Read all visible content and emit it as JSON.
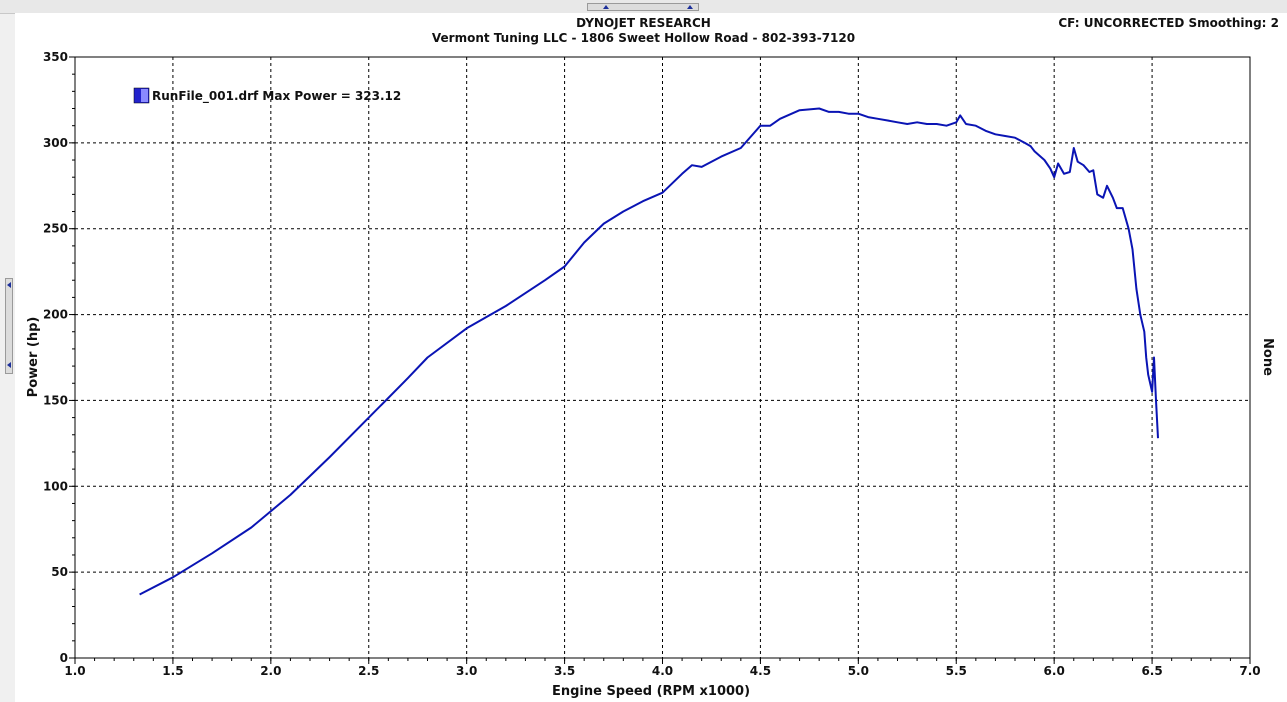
{
  "header": {
    "title": "DYNOJET RESEARCH",
    "subtitle": "Vermont Tuning LLC - 1806 Sweet Hollow Road - 802-393-7120",
    "correction": "CF: UNCORRECTED  Smoothing: 2"
  },
  "chart_data": {
    "type": "line",
    "xlabel": "Engine Speed (RPM x1000)",
    "ylabel": "Power (hp)",
    "y2label": "None",
    "xlim": [
      1.0,
      7.0
    ],
    "ylim": [
      0,
      350
    ],
    "x_ticks": [
      "1.0",
      "1.5",
      "2.0",
      "2.5",
      "3.0",
      "3.5",
      "4.0",
      "4.5",
      "5.0",
      "5.5",
      "6.0",
      "6.5",
      "7.0"
    ],
    "y_ticks": [
      "0",
      "50",
      "100",
      "150",
      "200",
      "250",
      "300",
      "350"
    ],
    "grid": true,
    "legend": {
      "position": "top-left",
      "entries": [
        {
          "label": "RunFile_001.drf Max Power = 323.12",
          "color": "#2222cc"
        }
      ]
    },
    "series": [
      {
        "name": "RunFile_001.drf",
        "color": "#0a14b4",
        "x": [
          1.33,
          1.5,
          1.7,
          1.9,
          2.1,
          2.3,
          2.5,
          2.7,
          2.8,
          3.0,
          3.2,
          3.4,
          3.5,
          3.6,
          3.7,
          3.8,
          3.9,
          4.0,
          4.1,
          4.15,
          4.2,
          4.3,
          4.4,
          4.5,
          4.55,
          4.6,
          4.7,
          4.8,
          4.85,
          4.9,
          4.95,
          5.0,
          5.05,
          5.1,
          5.15,
          5.2,
          5.25,
          5.3,
          5.35,
          5.4,
          5.45,
          5.5,
          5.52,
          5.55,
          5.6,
          5.65,
          5.7,
          5.75,
          5.8,
          5.85,
          5.88,
          5.9,
          5.95,
          5.98,
          6.0,
          6.02,
          6.05,
          6.08,
          6.1,
          6.12,
          6.15,
          6.18,
          6.2,
          6.22,
          6.25,
          6.27,
          6.3,
          6.32,
          6.35,
          6.38,
          6.4,
          6.42,
          6.44,
          6.45,
          6.46,
          6.47,
          6.48,
          6.5,
          6.51,
          6.52,
          6.53
        ],
        "values": [
          37,
          47,
          61,
          76,
          95,
          117,
          140,
          163,
          175,
          192,
          205,
          220,
          228,
          242,
          253,
          260,
          266,
          271,
          282,
          287,
          286,
          292,
          297,
          310,
          310,
          314,
          319,
          320,
          318,
          318,
          317,
          317,
          315,
          314,
          313,
          312,
          311,
          312,
          311,
          311,
          310,
          312,
          316,
          311,
          310,
          307,
          305,
          304,
          303,
          300,
          298,
          295,
          290,
          285,
          280,
          288,
          282,
          283,
          297,
          289,
          287,
          283,
          284,
          270,
          268,
          275,
          268,
          262,
          262,
          250,
          238,
          215,
          200,
          195,
          190,
          175,
          165,
          155,
          175,
          150,
          128
        ]
      }
    ]
  }
}
